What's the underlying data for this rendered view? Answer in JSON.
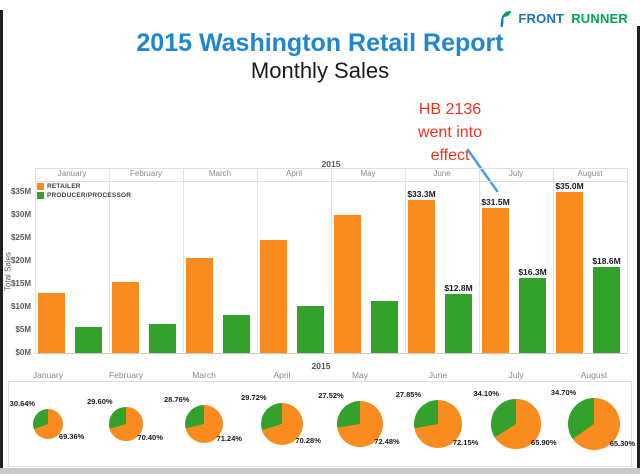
{
  "logo": {
    "brand_front": "FRONT",
    "brand_runner": "RUNNER"
  },
  "header": {
    "title": "2015 Washington Retail Report",
    "subtitle": "Monthly Sales"
  },
  "annotation": {
    "lines": [
      "HB 2136",
      "went into",
      "effect"
    ]
  },
  "colors": {
    "retailer_orange": "#FA8B1E",
    "producer_green": "#33A12C",
    "title_blue": "#1E86D2",
    "logo_blue": "#1B75BC",
    "logo_green": "#00A853",
    "annotation_red": "#F5301D",
    "callout_blue": "#4A9FE0"
  },
  "chart_data": [
    {
      "type": "bar",
      "title": "Monthly Sales",
      "year_label": "2015",
      "categories": [
        "January",
        "February",
        "March",
        "April",
        "May",
        "June",
        "July",
        "August"
      ],
      "series": [
        {
          "name": "RETAILER",
          "color": "#FA8B1E",
          "values": [
            13.0,
            15.4,
            20.7,
            24.5,
            30.0,
            33.3,
            31.5,
            35.0
          ],
          "bar_labels": [
            "",
            "",
            "",
            "",
            "",
            "$33.3M",
            "$31.5M",
            "$35.0M"
          ]
        },
        {
          "name": "PRODUCER/PROCESSOR",
          "color": "#33A12C",
          "values": [
            5.7,
            6.4,
            8.3,
            10.3,
            11.4,
            12.8,
            16.3,
            18.6
          ],
          "bar_labels": [
            "",
            "",
            "",
            "",
            "",
            "$12.8M",
            "$16.3M",
            "$18.6M"
          ]
        }
      ],
      "ylabel": "Total Sales",
      "y_tick_labels": [
        "$35M",
        "$30M",
        "$25M",
        "$20M",
        "$15M",
        "$10M",
        "$5M",
        "$0M"
      ],
      "ylim": [
        0,
        37.4
      ],
      "grid": "vertical-column-separators-only",
      "legend_position": "top-left"
    },
    {
      "type": "pie",
      "year_label": "2015",
      "categories": [
        "January",
        "February",
        "March",
        "April",
        "May",
        "June",
        "July",
        "August"
      ],
      "green_pct": [
        30.64,
        29.6,
        28.76,
        29.72,
        27.52,
        27.85,
        34.1,
        34.7
      ],
      "orange_pct": [
        69.36,
        70.4,
        71.24,
        70.28,
        72.48,
        72.15,
        65.9,
        65.3
      ],
      "green_labels": [
        "30.64%",
        "29.60%",
        "28.76%",
        "29.72%",
        "27.52%",
        "27.85%",
        "34.10%",
        "34.70%"
      ],
      "orange_labels": [
        "69.36%",
        "70.40%",
        "71.24%",
        "70.28%",
        "72.48%",
        "72.15%",
        "65.90%",
        "65.30%"
      ],
      "legend": [
        "RETAILER",
        "PRODUCER/PROCESSOR"
      ],
      "sized_by_total": true
    }
  ]
}
